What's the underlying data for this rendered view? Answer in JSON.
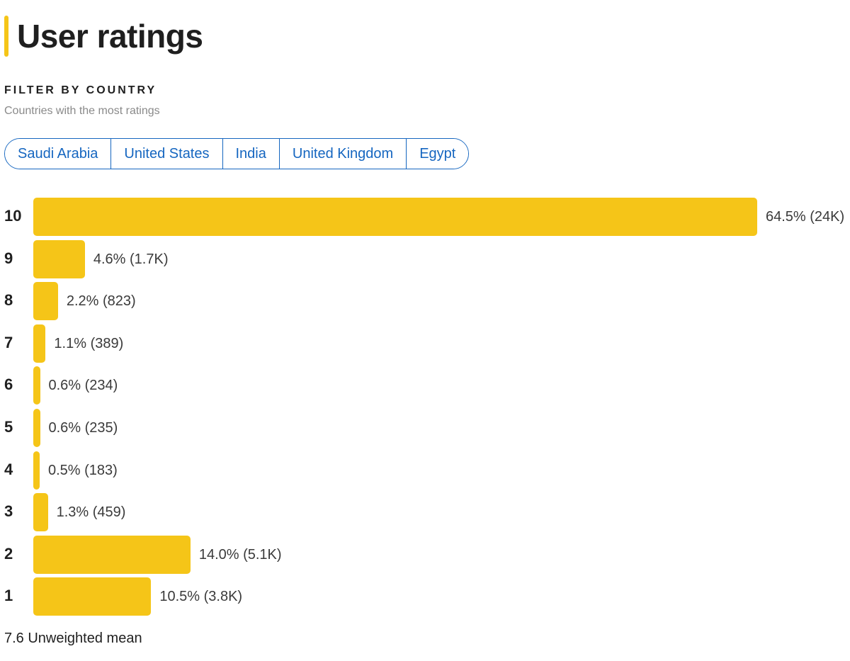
{
  "header": {
    "title": "User ratings",
    "accent_color": "#f5c518"
  },
  "filter": {
    "label": "FILTER BY COUNTRY",
    "subtitle": "Countries with the most ratings",
    "countries": [
      "Saudi Arabia",
      "United States",
      "India",
      "United Kingdom",
      "Egypt"
    ],
    "chip_color": "#1566c0"
  },
  "chart_data": {
    "type": "bar",
    "orientation": "horizontal",
    "categories": [
      "10",
      "9",
      "8",
      "7",
      "6",
      "5",
      "4",
      "3",
      "2",
      "1"
    ],
    "values": [
      64.5,
      4.6,
      2.2,
      1.1,
      0.6,
      0.6,
      0.5,
      1.3,
      14.0,
      10.5
    ],
    "value_labels": [
      "64.5% (24K)",
      "4.6% (1.7K)",
      "2.2% (823)",
      "1.1% (389)",
      "0.6% (234)",
      "0.6% (235)",
      "0.5% (183)",
      "1.3% (459)",
      "14.0% (5.1K)",
      "10.5% (3.8K)"
    ],
    "bar_color": "#f5c518",
    "title": "",
    "xlabel": "",
    "ylabel": "",
    "grid": false
  },
  "summary": {
    "mean_text": "7.6 Unweighted mean"
  }
}
